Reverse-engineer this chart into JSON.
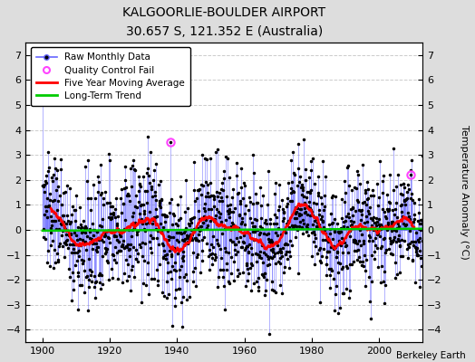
{
  "title": "KALGOORLIE-BOULDER AIRPORT",
  "subtitle": "30.657 S, 121.352 E (Australia)",
  "ylabel": "Temperature Anomaly (°C)",
  "credit": "Berkeley Earth",
  "ylim": [
    -4.5,
    7.5
  ],
  "yticks": [
    -4,
    -3,
    -2,
    -1,
    0,
    1,
    2,
    3,
    4,
    5,
    6,
    7
  ],
  "xlim": [
    1895,
    2013
  ],
  "xticks": [
    1900,
    1920,
    1940,
    1960,
    1980,
    2000
  ],
  "start_year": 1900,
  "end_year": 2013,
  "raw_line_color": "#6666ff",
  "raw_dot_color": "#000000",
  "ma_color": "#ff0000",
  "trend_color": "#00cc00",
  "qc_color": "#ff44ff",
  "plot_bg_color": "#ffffff",
  "fig_bg_color": "#dddddd",
  "grid_color": "#cccccc",
  "seed": 137,
  "qc_year1": 1938.0,
  "qc_val1": 3.5,
  "qc_year2": 2009.5,
  "qc_val2": 2.2
}
